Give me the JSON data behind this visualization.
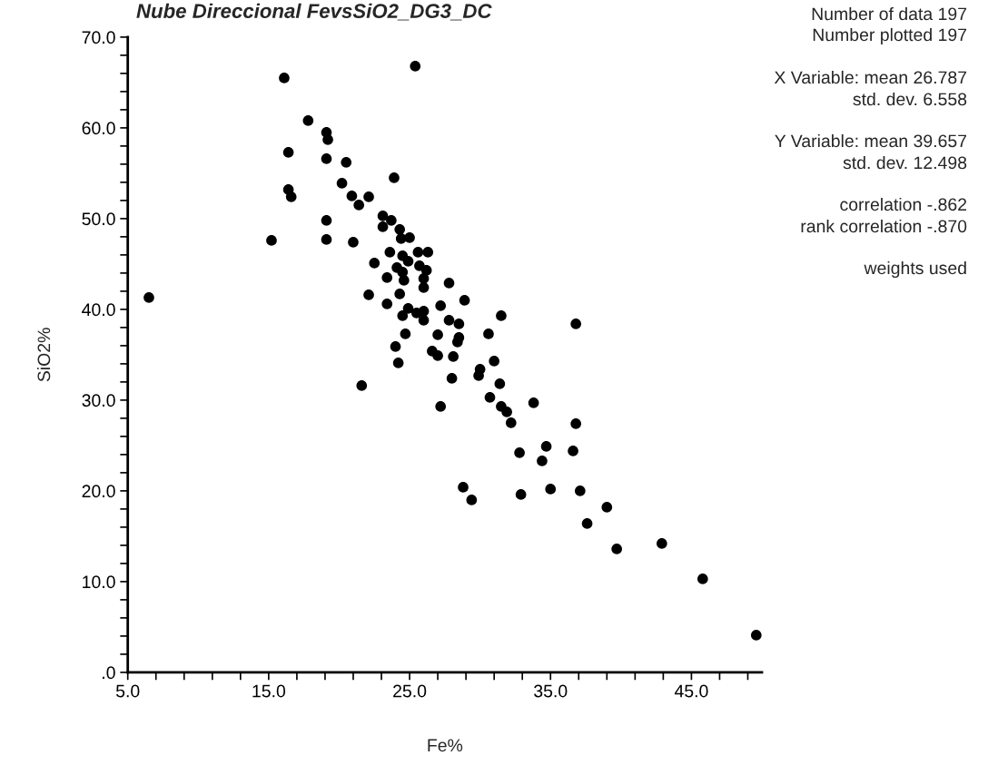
{
  "chart_data": {
    "type": "scatter",
    "title": "Nube Direccional FevsSiO2_DG3_DC",
    "xlabel": "Fe%",
    "ylabel": "SiO2%",
    "x": [
      6.5,
      15.2,
      16.1,
      16.4,
      16.4,
      16.6,
      17.8,
      19.1,
      19.2,
      19.1,
      19.1,
      19.1,
      20.2,
      20.5,
      20.9,
      21.0,
      21.4,
      21.6,
      22.1,
      22.1,
      22.5,
      23.1,
      23.1,
      23.4,
      23.4,
      23.6,
      23.7,
      23.9,
      24.0,
      24.1,
      24.2,
      24.3,
      24.3,
      24.4,
      24.5,
      24.5,
      24.5,
      24.6,
      24.7,
      24.9,
      24.9,
      25.0,
      25.4,
      25.6,
      25.5,
      25.7,
      26.0,
      26.0,
      26.0,
      26.0,
      26.2,
      26.3,
      26.6,
      27.0,
      27.0,
      27.2,
      27.2,
      27.8,
      27.8,
      28.0,
      28.1,
      28.4,
      28.5,
      28.5,
      28.8,
      28.9,
      29.4,
      29.9,
      30.0,
      30.6,
      30.7,
      31.0,
      31.4,
      31.5,
      31.5,
      31.9,
      32.2,
      32.8,
      32.9,
      33.8,
      34.4,
      34.7,
      35.0,
      36.6,
      36.8,
      36.8,
      37.1,
      37.6,
      39.0,
      39.7,
      42.9,
      45.8,
      49.6
    ],
    "series": [
      {
        "color": "#000000",
        "values": [
          41.3,
          47.6,
          65.5,
          57.3,
          53.2,
          52.4,
          60.8,
          59.5,
          58.7,
          56.6,
          49.8,
          47.7,
          53.9,
          56.2,
          52.5,
          47.4,
          51.5,
          31.6,
          52.4,
          41.6,
          45.1,
          50.3,
          49.1,
          43.5,
          40.6,
          46.3,
          49.8,
          54.5,
          35.9,
          44.6,
          34.1,
          48.8,
          41.7,
          47.8,
          45.9,
          44.1,
          39.3,
          43.2,
          37.3,
          45.3,
          40.1,
          47.9,
          66.8,
          46.3,
          39.6,
          44.8,
          43.4,
          42.4,
          39.8,
          38.8,
          44.3,
          46.3,
          35.4,
          37.2,
          34.9,
          40.4,
          29.3,
          42.9,
          38.8,
          32.4,
          34.8,
          36.4,
          38.4,
          36.9,
          20.4,
          41.0,
          19.0,
          32.7,
          33.4,
          37.3,
          30.3,
          34.3,
          31.8,
          39.3,
          29.3,
          28.7,
          27.5,
          24.2,
          19.6,
          29.7,
          23.3,
          24.9,
          20.2,
          24.4,
          38.4,
          27.4,
          20.0,
          16.4,
          18.2,
          13.6,
          14.2,
          10.3,
          4.1
        ]
      }
    ],
    "marker": "circle",
    "grid": false,
    "legend": false,
    "xlim": [
      5,
      50
    ],
    "ylim": [
      0,
      70
    ],
    "xticks": [
      {
        "value": 5,
        "label": "5.0"
      },
      {
        "value": 7,
        "label": null
      },
      {
        "value": 9,
        "label": null
      },
      {
        "value": 11,
        "label": null
      },
      {
        "value": 13,
        "label": null
      },
      {
        "value": 15,
        "label": "15.0"
      },
      {
        "value": 17,
        "label": null
      },
      {
        "value": 19,
        "label": null
      },
      {
        "value": 21,
        "label": null
      },
      {
        "value": 23,
        "label": null
      },
      {
        "value": 25,
        "label": "25.0"
      },
      {
        "value": 27,
        "label": null
      },
      {
        "value": 29,
        "label": null
      },
      {
        "value": 31,
        "label": null
      },
      {
        "value": 33,
        "label": null
      },
      {
        "value": 35,
        "label": "35.0"
      },
      {
        "value": 37,
        "label": null
      },
      {
        "value": 39,
        "label": null
      },
      {
        "value": 41,
        "label": null
      },
      {
        "value": 43,
        "label": null
      },
      {
        "value": 45,
        "label": "45.0"
      },
      {
        "value": 47,
        "label": null
      },
      {
        "value": 49,
        "label": null
      }
    ],
    "yticks": [
      {
        "value": 0,
        "label": ".0"
      },
      {
        "value": 2,
        "label": null
      },
      {
        "value": 4,
        "label": null
      },
      {
        "value": 6,
        "label": null
      },
      {
        "value": 8,
        "label": null
      },
      {
        "value": 10,
        "label": "10.0"
      },
      {
        "value": 12,
        "label": null
      },
      {
        "value": 14,
        "label": null
      },
      {
        "value": 16,
        "label": null
      },
      {
        "value": 18,
        "label": null
      },
      {
        "value": 20,
        "label": "20.0"
      },
      {
        "value": 22,
        "label": null
      },
      {
        "value": 24,
        "label": null
      },
      {
        "value": 26,
        "label": null
      },
      {
        "value": 28,
        "label": null
      },
      {
        "value": 30,
        "label": "30.0"
      },
      {
        "value": 32,
        "label": null
      },
      {
        "value": 34,
        "label": null
      },
      {
        "value": 36,
        "label": null
      },
      {
        "value": 38,
        "label": null
      },
      {
        "value": 40,
        "label": "40.0"
      },
      {
        "value": 42,
        "label": null
      },
      {
        "value": 44,
        "label": null
      },
      {
        "value": 46,
        "label": null
      },
      {
        "value": 48,
        "label": null
      },
      {
        "value": 50,
        "label": "50.0"
      },
      {
        "value": 52,
        "label": null
      },
      {
        "value": 54,
        "label": null
      },
      {
        "value": 56,
        "label": null
      },
      {
        "value": 58,
        "label": null
      },
      {
        "value": 60,
        "label": "60.0"
      },
      {
        "value": 62,
        "label": null
      },
      {
        "value": 64,
        "label": null
      },
      {
        "value": 66,
        "label": null
      },
      {
        "value": 68,
        "label": null
      },
      {
        "value": 70,
        "label": "70.0"
      }
    ],
    "annotations": [
      "Number of data 197",
      "Number plotted 197",
      "X Variable: mean 26.787",
      "std. dev. 6.558",
      "Y Variable: mean 39.657",
      "std. dev. 12.498",
      "correlation -.862",
      "rank correlation -.870",
      "weights used"
    ]
  }
}
